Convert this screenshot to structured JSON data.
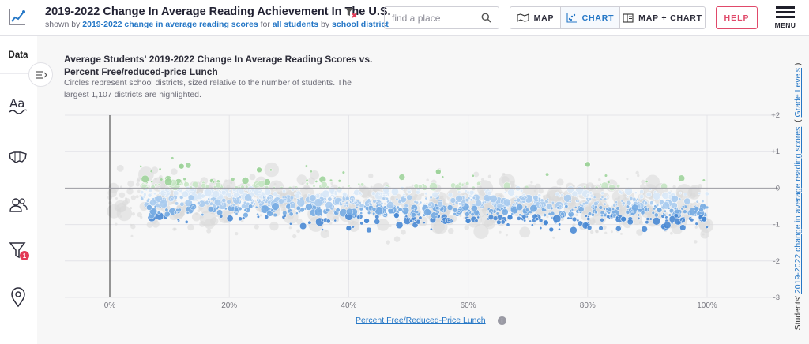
{
  "header": {
    "title": "2019-2022 Change In Average Reading Achievement In The U.S.",
    "subtitle": {
      "p1": "shown by ",
      "metric": "2019-2022 change in average reading scores",
      "p2": " for ",
      "group": "all students",
      "p3": " by ",
      "region": "school district"
    },
    "search_placeholder": "find a place",
    "views": [
      {
        "label": "MAP",
        "icon": "map-icon"
      },
      {
        "label": "CHART",
        "icon": "scatter-chart-icon",
        "active": true
      },
      {
        "label": "MAP + CHART",
        "icon": "split-view-icon"
      }
    ],
    "help_label": "HELP",
    "menu_label": "MENU"
  },
  "sidebar": {
    "data_label": "Data",
    "items": [
      {
        "icon": "text-aa-icon"
      },
      {
        "icon": "map-us-icon"
      },
      {
        "icon": "people-icon"
      },
      {
        "icon": "filter-icon",
        "badge": "1"
      },
      {
        "icon": "location-pin-icon"
      }
    ]
  },
  "chart_panel": {
    "title_line1": "Average Students' 2019-2022 Change In Average Reading Scores vs.",
    "title_line2": "Percent Free/reduced-price Lunch",
    "desc_line1": "Circles represent school districts, sized relative to the number of students. The",
    "desc_line2": "largest 1,107 districts are highlighted.",
    "y_axis_label_prefix": "Students' ",
    "y_axis_label_link": "2019-2022 change in average reading scores",
    "y_axis_label_suffix": "Grade Levels",
    "x_axis_label": "Percent Free/Reduced-Price Lunch",
    "info_icon_text": "i"
  },
  "colors": {
    "accent": "#2577c6",
    "help": "#e0496a",
    "badge": "#e33b57",
    "positive": "#9fd39b",
    "negative": "#4a8ad4",
    "background_points": "#d9d9d9"
  },
  "chart_data": {
    "type": "scatter",
    "title": "Average Students' 2019-2022 Change In Average Reading Scores vs. Percent Free/reduced-price Lunch",
    "xlabel": "Percent Free/Reduced-Price Lunch",
    "ylabel": "Students' 2019-2022 change in average reading scores (Grade Levels)",
    "xlim": [
      0,
      100
    ],
    "ylim": [
      -3,
      2
    ],
    "x_ticks": [
      "0%",
      "20%",
      "40%",
      "60%",
      "80%",
      "100%"
    ],
    "y_ticks": [
      "+2",
      "+1",
      "0",
      "-1",
      "-2",
      "-3"
    ],
    "grid": true,
    "highlighted_count": 1107,
    "sample_points": [
      {
        "x": 12,
        "y": 0.6
      },
      {
        "x": 25,
        "y": 0.5
      },
      {
        "x": 40,
        "y": -1.1
      },
      {
        "x": 43,
        "y": -0.9
      },
      {
        "x": 48,
        "y": -0.75
      },
      {
        "x": 55,
        "y": 0.45
      },
      {
        "x": 60,
        "y": -0.9
      },
      {
        "x": 67,
        "y": -0.8
      },
      {
        "x": 73,
        "y": -0.95
      },
      {
        "x": 80,
        "y": 0.65
      },
      {
        "x": 86,
        "y": -0.85
      },
      {
        "x": 92,
        "y": -0.6
      },
      {
        "x": 99,
        "y": -0.8
      },
      {
        "x": 99.5,
        "y": -0.85
      }
    ]
  }
}
